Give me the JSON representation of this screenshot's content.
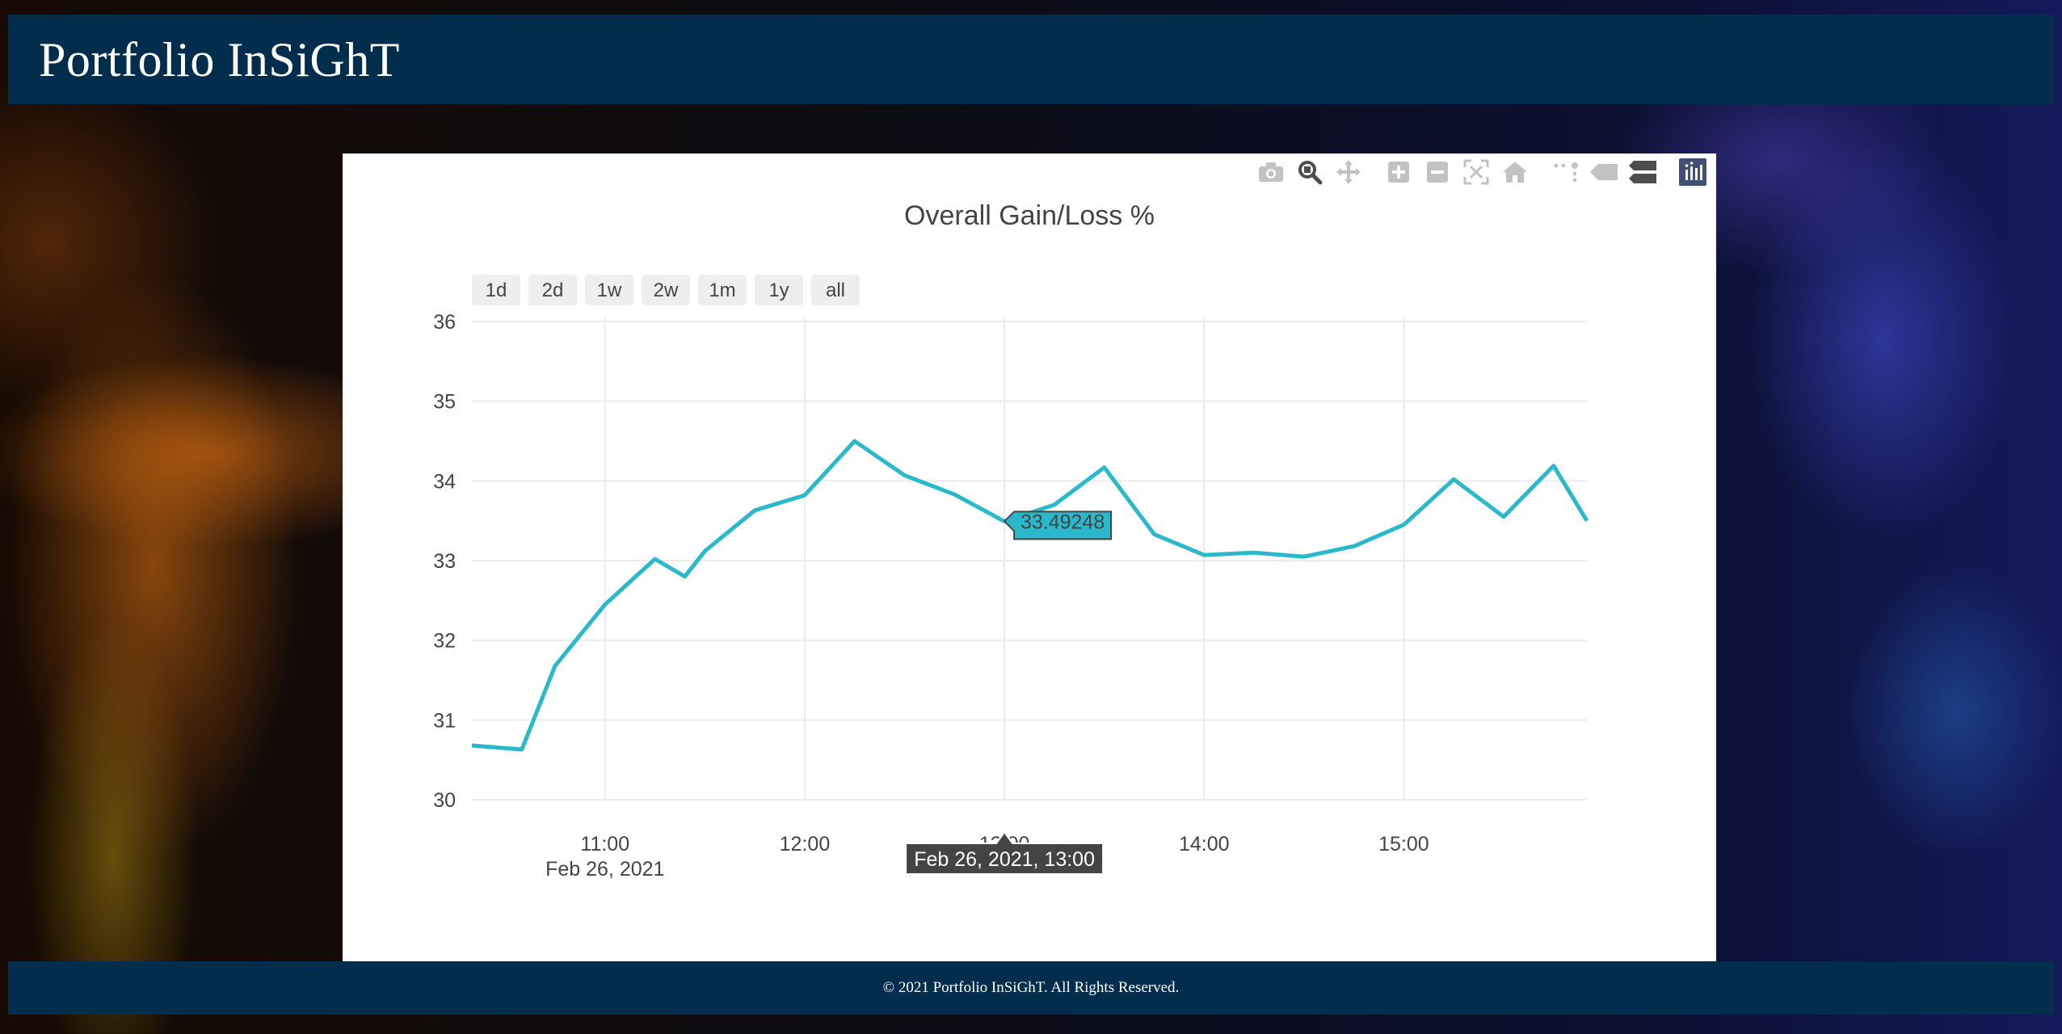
{
  "header": {
    "brand": "Portfolio InSiGhT"
  },
  "footer": {
    "copyright": "© 2021 Portfolio InSiGhT. All Rights Reserved."
  },
  "modebar": {
    "buttons": [
      "camera-icon",
      "zoom-icon",
      "pan-icon",
      "zoom-in-icon",
      "zoom-out-icon",
      "autoscale-icon",
      "reset-axes-icon",
      "spike-lines-icon",
      "hover-closest-icon",
      "hover-compare-icon",
      "plotly-logo-icon"
    ]
  },
  "chart_data": {
    "type": "line",
    "title": "Overall Gain/Loss %",
    "xlabel": "",
    "ylabel": "",
    "range_selector": [
      "1d",
      "2d",
      "1w",
      "2w",
      "1m",
      "1y",
      "all"
    ],
    "x_ticks": [
      "11:00",
      "12:00",
      "13:00",
      "14:00",
      "15:00"
    ],
    "x_date_label": "Feb 26, 2021",
    "y_ticks": [
      30,
      31,
      32,
      33,
      34,
      35,
      36
    ],
    "ylim": [
      30,
      36
    ],
    "xlim": [
      "2021-02-26 10:20",
      "2021-02-26 15:55"
    ],
    "grid": true,
    "line_color": "#2ab9cc",
    "series": [
      {
        "x": [
          "2021-02-26 10:20",
          "2021-02-26 10:35",
          "2021-02-26 10:45",
          "2021-02-26 11:00",
          "2021-02-26 11:15",
          "2021-02-26 11:24",
          "2021-02-26 11:30",
          "2021-02-26 11:45",
          "2021-02-26 12:00",
          "2021-02-26 12:15",
          "2021-02-26 12:30",
          "2021-02-26 12:45",
          "2021-02-26 13:00",
          "2021-02-26 13:15",
          "2021-02-26 13:30",
          "2021-02-26 13:45",
          "2021-02-26 14:00",
          "2021-02-26 14:15",
          "2021-02-26 14:30",
          "2021-02-26 14:45",
          "2021-02-26 15:00",
          "2021-02-26 15:15",
          "2021-02-26 15:30",
          "2021-02-26 15:45",
          "2021-02-26 15:55"
        ],
        "values": [
          30.68,
          30.63,
          31.68,
          32.45,
          33.02,
          32.8,
          33.12,
          33.63,
          33.82,
          34.5,
          34.07,
          33.83,
          33.49248,
          33.7,
          34.17,
          33.33,
          33.07,
          33.1,
          33.05,
          33.18,
          33.45,
          34.02,
          33.55,
          34.19,
          33.5
        ]
      }
    ],
    "hover": {
      "x_label": "Feb 26, 2021, 13:00",
      "y_label": "33.49248"
    }
  }
}
